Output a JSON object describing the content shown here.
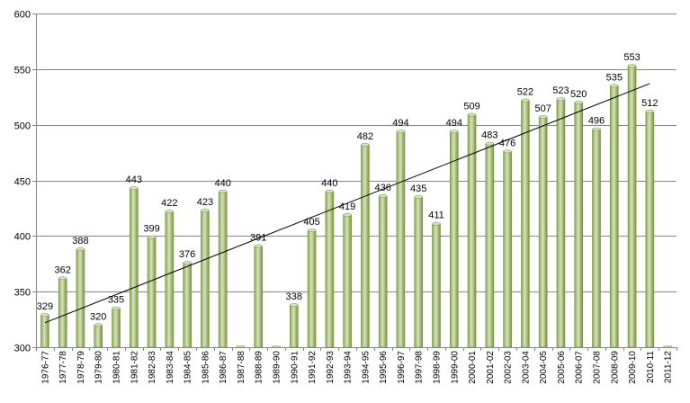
{
  "chart_data": {
    "type": "bar",
    "categories": [
      "1976-77",
      "1977-78",
      "1978-79",
      "1979-80",
      "1980-81",
      "1981-82",
      "1982-83",
      "1983-84",
      "1984-85",
      "1985-86",
      "1986-87",
      "1987-88",
      "1988-89",
      "1989-90",
      "1990-91",
      "1991-92",
      "1992-93",
      "1993-94",
      "1994-95",
      "1995-96",
      "1996-97",
      "1997-98",
      "1998-99",
      "1999-00",
      "2000-01",
      "2001-02",
      "2002-03",
      "2003-04",
      "2004-05",
      "2005-06",
      "2006-07",
      "2007-08",
      "2008-09",
      "2009-10",
      "2010-11",
      "2011-12"
    ],
    "values": [
      329,
      362,
      388,
      320,
      335,
      443,
      399,
      422,
      376,
      423,
      440,
      null,
      391,
      null,
      338,
      405,
      440,
      419,
      482,
      436,
      494,
      435,
      411,
      494,
      509,
      483,
      476,
      522,
      507,
      523,
      520,
      496,
      535,
      553,
      512,
      null
    ],
    "ylim": [
      300,
      600
    ],
    "yticks": [
      300,
      350,
      400,
      450,
      500,
      550,
      600
    ],
    "grid": true,
    "trendline": {
      "type": "linear",
      "start": 322,
      "end": 537
    },
    "colors": {
      "bar": "#9bbb59",
      "bar_light": "#d7e4bd",
      "bar_dark": "#76923c",
      "grid": "#868686",
      "trend": "#000000"
    }
  }
}
